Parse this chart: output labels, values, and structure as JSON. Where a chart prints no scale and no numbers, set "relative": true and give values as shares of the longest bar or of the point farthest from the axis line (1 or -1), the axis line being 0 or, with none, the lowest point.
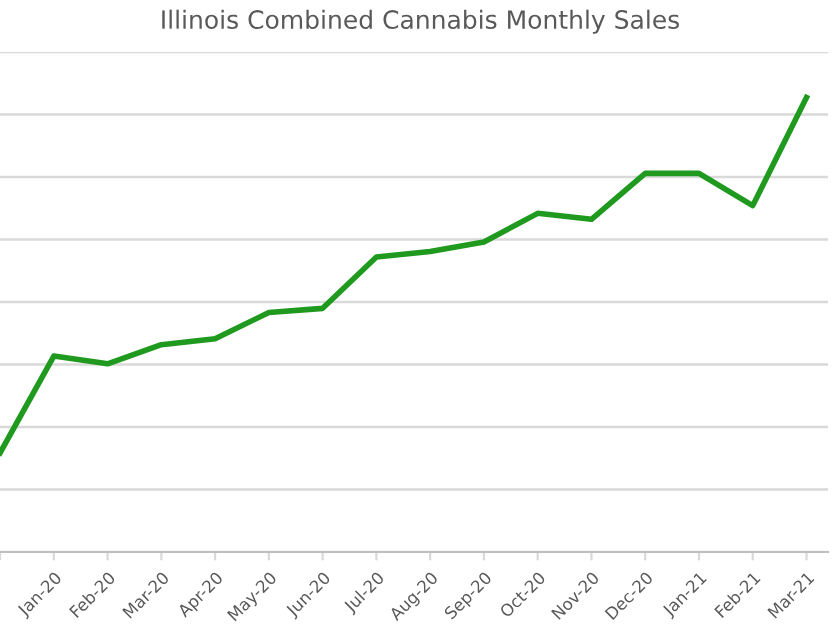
{
  "chart_data": {
    "type": "line",
    "title": "Illinois Combined Cannabis Monthly Sales",
    "categories": [
      null,
      "Jan-20",
      "Feb-20",
      "Mar-20",
      "Apr-20",
      "May-20",
      "Jun-20",
      "Jul-20",
      "Aug-20",
      "Sep-20",
      "Oct-20",
      "Nov-20",
      "Dec-20",
      "Jan-21",
      "Feb-21",
      "Mar-21"
    ],
    "series": [
      {
        "color": "#1f9a1f",
        "values": [
          0.218,
          0.431,
          0.414,
          0.456,
          0.469,
          0.527,
          0.536,
          0.649,
          0.661,
          0.682,
          0.745,
          0.732,
          0.833,
          0.833,
          0.762,
          1
        ]
      }
    ],
    "relative": true,
    "grid": "y",
    "legend": false,
    "marker": "none",
    "line_style": "solid"
  }
}
